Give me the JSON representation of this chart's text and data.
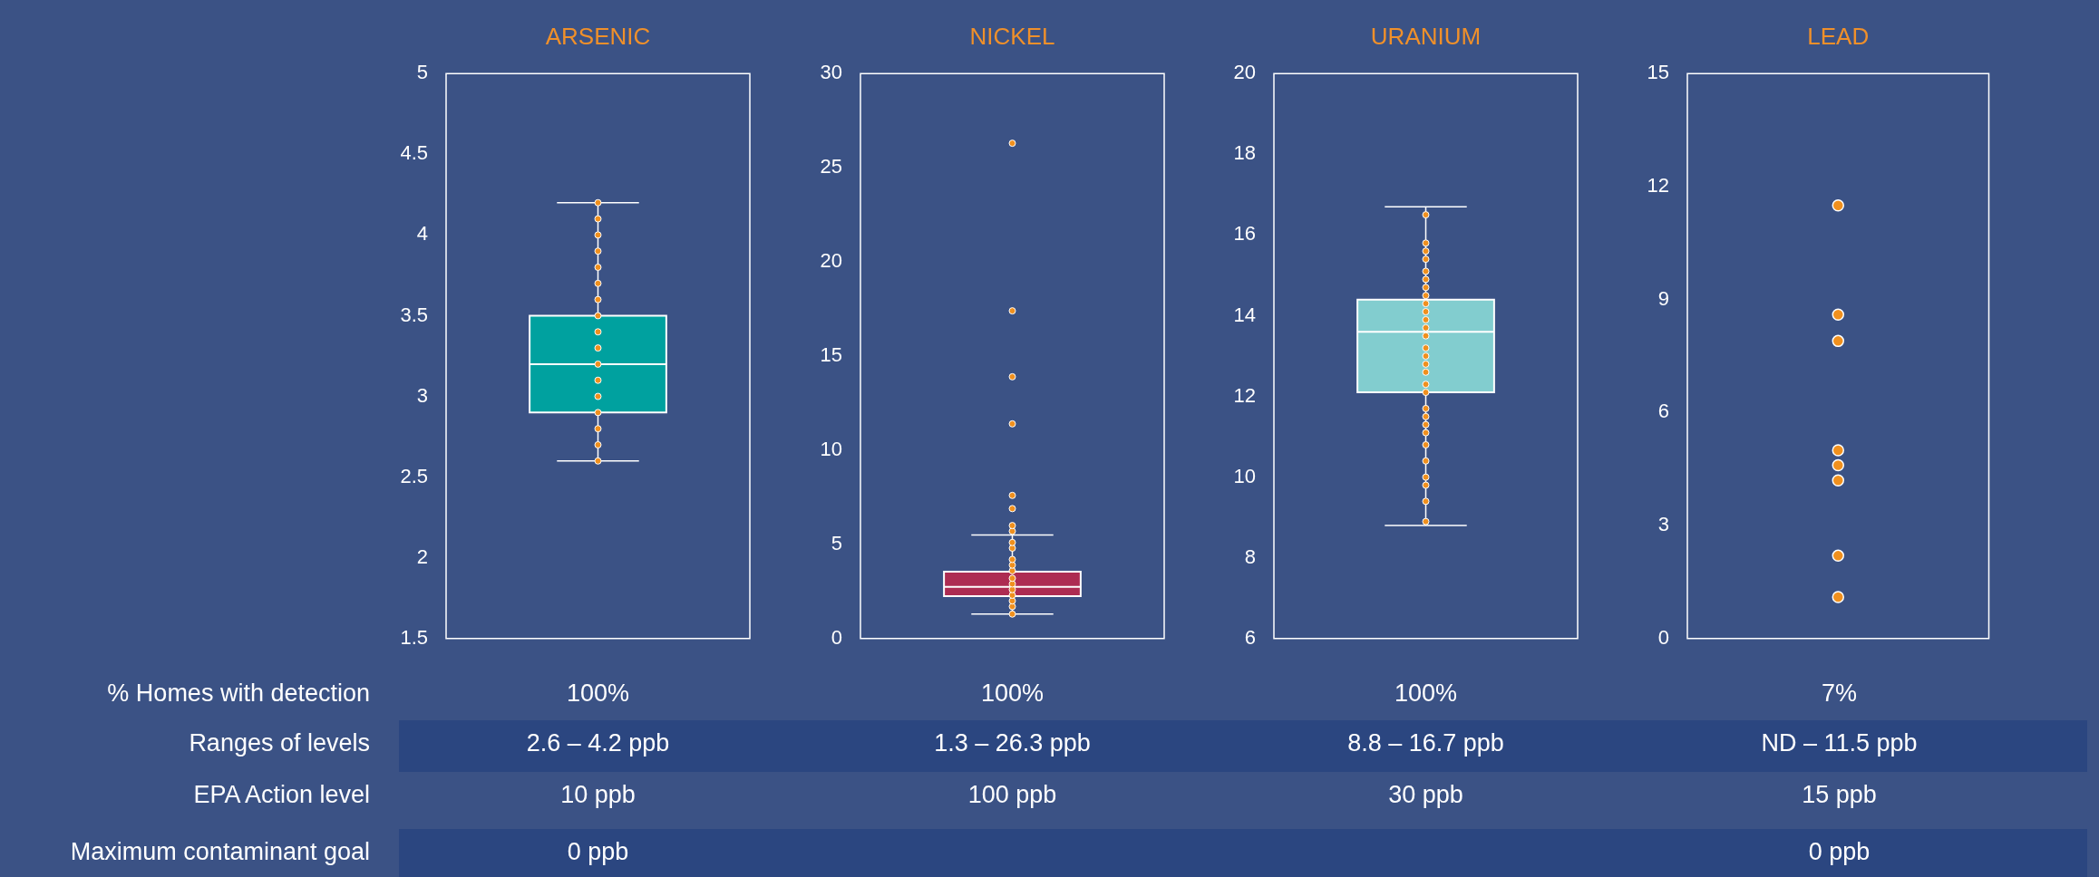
{
  "chart_data": [
    {
      "type": "box",
      "categories": [
        "ARSENIC"
      ],
      "ylim": [
        1.5,
        5
      ],
      "yticks": [
        1.5,
        2,
        2.5,
        3,
        3.5,
        4,
        4.5,
        5
      ],
      "series": [
        {
          "type": "box",
          "color": "#00a19f",
          "boxes": [
            {
              "low": 2.6,
              "q1": 2.9,
              "median": 3.2,
              "q3": 3.5,
              "high": 4.2
            }
          ]
        },
        {
          "type": "scatter",
          "color": "#f0901e",
          "marker": "circle",
          "x": [
            "ARSENIC",
            "ARSENIC",
            "ARSENIC",
            "ARSENIC",
            "ARSENIC",
            "ARSENIC",
            "ARSENIC",
            "ARSENIC",
            "ARSENIC",
            "ARSENIC",
            "ARSENIC",
            "ARSENIC",
            "ARSENIC",
            "ARSENIC",
            "ARSENIC",
            "ARSENIC",
            "ARSENIC"
          ],
          "values": [
            2.6,
            2.7,
            2.8,
            2.9,
            3.0,
            3.1,
            3.2,
            3.3,
            3.4,
            3.5,
            3.6,
            3.7,
            3.8,
            3.9,
            4.0,
            4.1,
            4.2
          ]
        }
      ],
      "annotations": [
        "100%",
        "2.6 – 4.2 ppb",
        "10 ppb",
        "0 ppb"
      ]
    },
    {
      "type": "box",
      "categories": [
        "NICKEL"
      ],
      "ylim": [
        0,
        30
      ],
      "yticks": [
        0,
        5,
        10,
        15,
        20,
        25,
        30
      ],
      "series": [
        {
          "type": "box",
          "color": "#ad2c52",
          "boxes": [
            {
              "low": 1.3,
              "q1": 2.25,
              "median": 2.75,
              "q3": 3.55,
              "high": 5.5
            }
          ]
        },
        {
          "type": "scatter",
          "color": "#f0901e",
          "marker": "circle",
          "x": [
            "NICKEL",
            "NICKEL",
            "NICKEL",
            "NICKEL",
            "NICKEL",
            "NICKEL",
            "NICKEL",
            "NICKEL",
            "NICKEL",
            "NICKEL",
            "NICKEL",
            "NICKEL",
            "NICKEL",
            "NICKEL",
            "NICKEL",
            "NICKEL",
            "NICKEL",
            "NICKEL",
            "NICKEL",
            "NICKEL"
          ],
          "values": [
            1.3,
            1.7,
            2.0,
            2.3,
            2.6,
            2.9,
            3.2,
            3.6,
            3.9,
            4.2,
            4.8,
            5.1,
            5.7,
            6.0,
            6.9,
            7.6,
            11.4,
            13.9,
            17.4,
            26.3
          ]
        }
      ],
      "annotations": [
        "100%",
        "1.3 – 26.3 ppb",
        "100 ppb"
      ]
    },
    {
      "type": "box",
      "categories": [
        "URANIUM"
      ],
      "ylim": [
        6,
        20
      ],
      "yticks": [
        6,
        8,
        10,
        12,
        14,
        16,
        18,
        20
      ],
      "series": [
        {
          "type": "box",
          "color": "#82cdcf",
          "boxes": [
            {
              "low": 8.8,
              "q1": 12.1,
              "median": 13.6,
              "q3": 14.4,
              "high": 16.7
            }
          ]
        },
        {
          "type": "scatter",
          "color": "#f0901e",
          "marker": "circle",
          "x": [
            "URANIUM",
            "URANIUM",
            "URANIUM",
            "URANIUM",
            "URANIUM",
            "URANIUM",
            "URANIUM",
            "URANIUM",
            "URANIUM",
            "URANIUM",
            "URANIUM",
            "URANIUM",
            "URANIUM",
            "URANIUM",
            "URANIUM",
            "URANIUM",
            "URANIUM",
            "URANIUM",
            "URANIUM",
            "URANIUM",
            "URANIUM",
            "URANIUM",
            "URANIUM",
            "URANIUM",
            "URANIUM",
            "URANIUM",
            "URANIUM",
            "URANIUM",
            "URANIUM"
          ],
          "values": [
            8.9,
            9.4,
            9.8,
            10.0,
            10.4,
            10.8,
            11.1,
            11.3,
            11.5,
            11.7,
            12.1,
            12.3,
            12.6,
            12.8,
            13.0,
            13.2,
            13.5,
            13.7,
            13.9,
            14.1,
            14.3,
            14.5,
            14.7,
            14.9,
            15.1,
            15.4,
            15.6,
            15.8,
            16.5
          ]
        }
      ],
      "annotations": [
        "100%",
        "8.8 – 16.7 ppb",
        "30 ppb"
      ]
    },
    {
      "type": "scatter",
      "categories": [
        "LEAD"
      ],
      "ylim": [
        0,
        15
      ],
      "yticks": [
        0,
        3,
        6,
        9,
        12,
        15
      ],
      "series": [
        {
          "type": "scatter",
          "color": "#f0901e",
          "marker": "circle",
          "x": [
            "LEAD",
            "LEAD",
            "LEAD",
            "LEAD",
            "LEAD",
            "LEAD",
            "LEAD",
            "LEAD"
          ],
          "values": [
            1.1,
            2.2,
            4.2,
            4.6,
            5.0,
            7.9,
            8.6,
            11.5
          ]
        }
      ],
      "annotations": [
        "7%",
        "ND – 11.5 ppb",
        "15 ppb",
        "0 ppb"
      ]
    },
    {
      "type": "other",
      "annotations": [
        "% Homes with detection",
        "Ranges of levels",
        "EPA Action level",
        "Maximum contaminant goal"
      ]
    }
  ]
}
